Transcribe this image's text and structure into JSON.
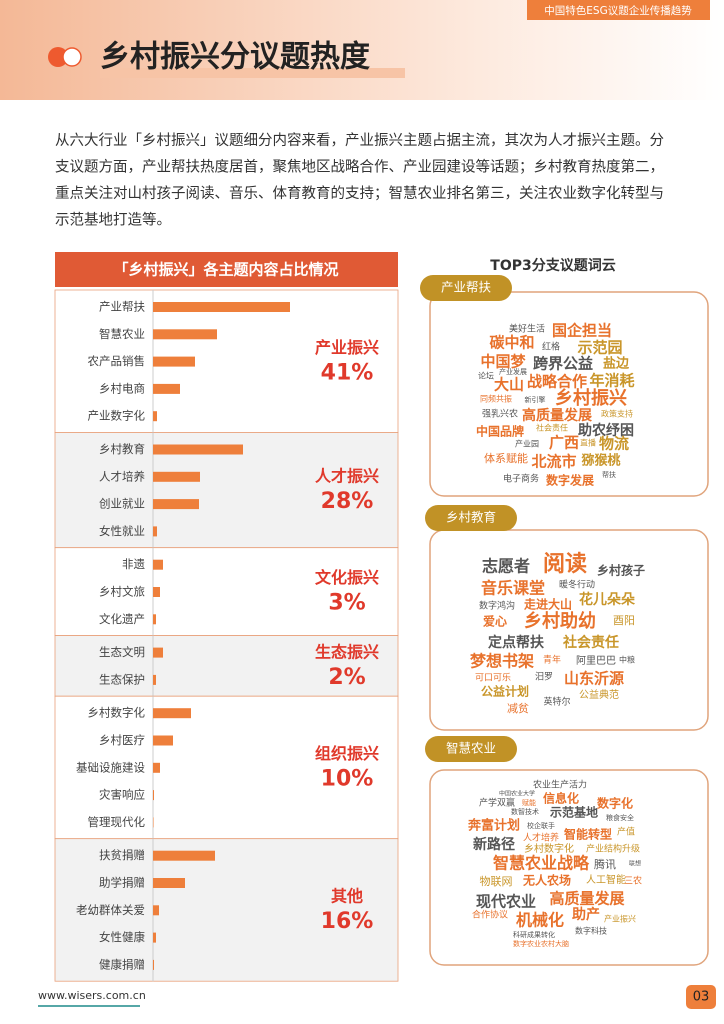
{
  "header": {
    "tag": "中国特色ESG议题企业传播趋势",
    "title": "乡村振兴分议题热度"
  },
  "intro": {
    "lines": [
      "从六大行业「乡村振兴」议题细分内容来看，产业振兴主题占据主流，其次为人才振兴主题。分",
      "支议题方面，产业帮扶热度居首，聚焦地区战略合作、产业园建设等话题；乡村教育热度第二，",
      "重点关注对山村孩子阅读、音乐、体育教育的支持；智慧农业排名第三，关注农业数字化转型与",
      "示范基地打造等。"
    ]
  },
  "chart_data": {
    "type": "bar",
    "title": "「乡村振兴」各主题内容占比情况",
    "color": "#ee7f3b",
    "groups": [
      {
        "name": "产业振兴",
        "value": 41,
        "value_label": "41%",
        "categories": [
          "产业帮扶",
          "智慧农业",
          "农产品销售",
          "乡村电商",
          "产业数字化"
        ],
        "values": [
          137,
          64,
          42,
          27,
          4
        ]
      },
      {
        "name": "人才振兴",
        "value": 28,
        "value_label": "28%",
        "categories": [
          "乡村教育",
          "人才培养",
          "创业就业",
          "女性就业"
        ],
        "values": [
          90,
          47,
          46,
          4
        ]
      },
      {
        "name": "文化振兴",
        "value": 3,
        "value_label": "3%",
        "categories": [
          "非遗",
          "乡村文旅",
          "文化遗产"
        ],
        "values": [
          10,
          7,
          3
        ]
      },
      {
        "name": "生态振兴",
        "value": 2,
        "value_label": "2%",
        "categories": [
          "生态文明",
          "生态保护"
        ],
        "values": [
          10,
          3
        ]
      },
      {
        "name": "组织振兴",
        "value": 10,
        "value_label": "10%",
        "categories": [
          "乡村数字化",
          "乡村医疗",
          "基础设施建设",
          "灾害响应",
          "管理现代化"
        ],
        "values": [
          38,
          20,
          7,
          1,
          0.5
        ]
      },
      {
        "name": "其他",
        "value": 16,
        "value_label": "16%",
        "categories": [
          "扶贫捐赠",
          "助学捐赠",
          "老幼群体关爱",
          "女性健康",
          "健康捐赠"
        ],
        "values": [
          62,
          32,
          6,
          3,
          1
        ]
      }
    ]
  },
  "word_clouds": {
    "title": "TOP3分支议题词云",
    "clouds": [
      {
        "name": "产业帮扶",
        "words": [
          "美好生活",
          "国企担当",
          "碳中和",
          "红格",
          "示范园",
          "中国梦",
          "跨界公益",
          "盐边",
          "论坛",
          "产业发展",
          "大山",
          "战略合作",
          "年消耗",
          "同频共振",
          "新引擎",
          "乡村振兴",
          "强乳兴农",
          "高质量发展",
          "政策支持",
          "中国品牌",
          "社会责任",
          "助农纾困",
          "产业园",
          "广西",
          "直播",
          "物流",
          "体系赋能",
          "北流市",
          "猕猴桃",
          "帮扶",
          "电子商务",
          "数字发展"
        ]
      },
      {
        "name": "乡村教育",
        "words": [
          "志愿者",
          "阅读",
          "乡村孩子",
          "音乐课堂",
          "暖冬行动",
          "数字鸿沟",
          "走进大山",
          "花儿朵朵",
          "爱心",
          "乡村助幼",
          "酉阳",
          "定点帮扶",
          "社会责任",
          "梦想书架",
          "青年",
          "阿里巴巴",
          "中粮",
          "可口可乐",
          "汨罗",
          "山东沂源",
          "公益计划",
          "公益典范",
          "减贫",
          "英特尔"
        ]
      },
      {
        "name": "智慧农业",
        "words": [
          "农业生产活力",
          "中国农业大学",
          "产学双赢",
          "信息化",
          "数字化",
          "赋能",
          "数智技术",
          "示范基地",
          "粮食安全",
          "奔富计划",
          "校企联手",
          "人才培养",
          "智能转型",
          "产值",
          "新路径",
          "乡村数字化",
          "产业结构升级",
          "智慧农业战略",
          "腾讯",
          "联想",
          "物联网",
          "无人农场",
          "人工智能",
          "三农",
          "现代农业",
          "高质量发展",
          "合作协议",
          "机械化",
          "助产",
          "产业振兴",
          "科研成果转化",
          "数字科技",
          "数字农业农村大脑"
        ]
      }
    ]
  },
  "footer": {
    "url": "www.wisers.com.cn",
    "page": "03"
  }
}
